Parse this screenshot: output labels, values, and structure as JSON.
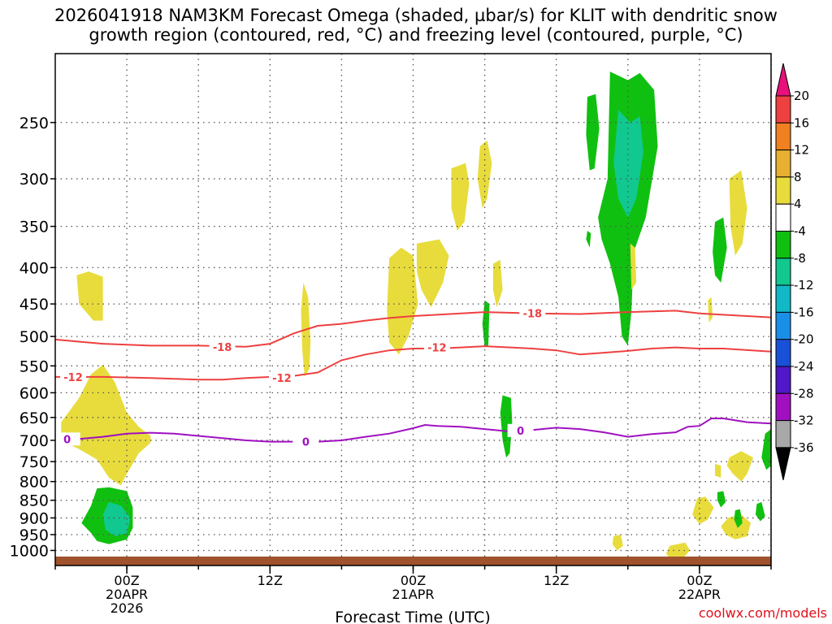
{
  "title_line1": "2026041918 NAM3KM Forecast Omega (shaded, µbar/s) for KLIT with dendritic snow",
  "title_line2": "growth region (contoured, red, °C) and freezing level (contoured, purple, °C)",
  "credit": "coolwx.com/models",
  "chart_data": {
    "type": "time-height cross section",
    "xlabel": "Forecast Time (UTC)",
    "ylabel": "",
    "x_range_hours": [
      -6,
      54
    ],
    "y_scale": "log-pressure",
    "y_range_hPa": [
      1050,
      200
    ],
    "x_ticks": [
      {
        "hour": 0,
        "label": "00Z",
        "sub1": "20APR",
        "sub2": "2026"
      },
      {
        "hour": 12,
        "label": "12Z",
        "sub1": "",
        "sub2": ""
      },
      {
        "hour": 24,
        "label": "00Z",
        "sub1": "21APR",
        "sub2": ""
      },
      {
        "hour": 36,
        "label": "12Z",
        "sub1": "",
        "sub2": ""
      },
      {
        "hour": 48,
        "label": "00Z",
        "sub1": "22APR",
        "sub2": ""
      }
    ],
    "y_ticks": [
      250,
      300,
      350,
      400,
      450,
      500,
      550,
      600,
      650,
      700,
      750,
      800,
      850,
      900,
      950,
      1000
    ],
    "grid": true,
    "colorbar": {
      "units": "µbar/s",
      "labels": [
        "20",
        "16",
        "12",
        "8",
        "4",
        "-4",
        "-8",
        "-12",
        "-16",
        "-20",
        "-24",
        "-28",
        "-32",
        "-36"
      ],
      "colors": [
        "#e8107a",
        "#ee4040",
        "#f08020",
        "#e8b030",
        "#e8dc3c",
        "#ffffff",
        "#10c010",
        "#10c890",
        "#10b8c8",
        "#1890e8",
        "#1850d8",
        "#5018c8",
        "#a010c0",
        "#a8a8a8",
        "#000000"
      ]
    },
    "omega_colors": {
      "y4": "#e8dc3c",
      "y8": "#e8b030",
      "g8": "#10c010",
      "g12": "#10c890"
    },
    "terrain_color": "#a0522d",
    "contours": [
      {
        "label": "-18",
        "color": "#ee4040",
        "points": [
          [
            -6,
            505
          ],
          [
            -2,
            512
          ],
          [
            2,
            515
          ],
          [
            6,
            515
          ],
          [
            10,
            517
          ],
          [
            12,
            512
          ],
          [
            14,
            495
          ],
          [
            16,
            483
          ],
          [
            18,
            480
          ],
          [
            20,
            475
          ],
          [
            22,
            471
          ],
          [
            24,
            468
          ],
          [
            26,
            466
          ],
          [
            28,
            464
          ],
          [
            30,
            462
          ],
          [
            34,
            464
          ],
          [
            38,
            465
          ],
          [
            42,
            462
          ],
          [
            46,
            460
          ],
          [
            48,
            464
          ],
          [
            50,
            466
          ],
          [
            54,
            470
          ]
        ],
        "label_points": [
          [
            8,
            517
          ],
          [
            34,
            464
          ]
        ]
      },
      {
        "label": "-12",
        "color": "#ee4040",
        "points": [
          [
            -6,
            570
          ],
          [
            -2,
            570
          ],
          [
            2,
            572
          ],
          [
            6,
            575
          ],
          [
            8,
            575
          ],
          [
            10,
            572
          ],
          [
            14,
            568
          ],
          [
            16,
            562
          ],
          [
            18,
            540
          ],
          [
            20,
            530
          ],
          [
            22,
            523
          ],
          [
            24,
            520
          ],
          [
            26,
            520
          ],
          [
            28,
            518
          ],
          [
            30,
            516
          ],
          [
            34,
            520
          ],
          [
            36,
            523
          ],
          [
            38,
            530
          ],
          [
            40,
            527
          ],
          [
            42,
            524
          ],
          [
            44,
            520
          ],
          [
            46,
            518
          ],
          [
            48,
            520
          ],
          [
            50,
            520
          ],
          [
            54,
            525
          ]
        ],
        "label_points": [
          [
            -4.5,
            570
          ],
          [
            13,
            572
          ],
          [
            26,
            518
          ]
        ]
      },
      {
        "label": "0",
        "color": "#a010c0",
        "points": [
          [
            -6,
            697
          ],
          [
            -4,
            697
          ],
          [
            -2,
            692
          ],
          [
            0,
            685
          ],
          [
            2,
            683
          ],
          [
            4,
            685
          ],
          [
            6,
            690
          ],
          [
            8,
            695
          ],
          [
            10,
            700
          ],
          [
            12,
            703
          ],
          [
            14,
            703
          ],
          [
            16,
            703
          ],
          [
            18,
            700
          ],
          [
            20,
            692
          ],
          [
            22,
            685
          ],
          [
            24,
            673
          ],
          [
            25,
            666
          ],
          [
            26,
            668
          ],
          [
            28,
            670
          ],
          [
            30,
            675
          ],
          [
            32,
            680
          ],
          [
            34,
            677
          ],
          [
            36,
            672
          ],
          [
            38,
            675
          ],
          [
            40,
            682
          ],
          [
            42,
            692
          ],
          [
            44,
            686
          ],
          [
            46,
            682
          ],
          [
            47,
            670
          ],
          [
            48,
            668
          ],
          [
            49,
            652
          ],
          [
            50,
            652
          ],
          [
            52,
            660
          ],
          [
            54,
            663
          ]
        ],
        "label_points": [
          [
            -5,
            697
          ],
          [
            15,
            703
          ],
          [
            33,
            678
          ]
        ]
      }
    ]
  }
}
